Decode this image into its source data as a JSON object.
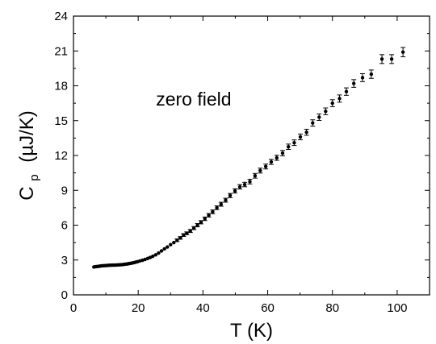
{
  "chart_data": {
    "type": "scatter",
    "title": "",
    "xlabel": "T (K)",
    "ylabel_main": "C",
    "ylabel_sub": "p",
    "ylabel_unit": "(µJ/K)",
    "annotation": "zero field",
    "xlim": [
      0,
      110
    ],
    "ylim": [
      0,
      24
    ],
    "x_ticks": [
      0,
      20,
      40,
      60,
      80,
      100
    ],
    "x_tick_labels": [
      "0",
      "20",
      "40",
      "60",
      "80",
      "100"
    ],
    "y_ticks": [
      0,
      3,
      6,
      9,
      12,
      15,
      18,
      21,
      24
    ],
    "y_tick_labels": [
      "0",
      "3",
      "6",
      "9",
      "12",
      "15",
      "18",
      "21",
      "24"
    ],
    "grid": false,
    "legend": "none",
    "marker_color": "#000000",
    "series": [
      {
        "x": [
          6.3,
          6.8,
          7.3,
          7.8,
          8.3,
          8.8,
          9.3,
          9.8,
          10.3,
          10.8,
          11.3,
          11.8,
          12.3,
          12.8,
          13.3,
          13.8,
          14.3,
          14.8,
          15.3,
          15.8,
          16.3,
          16.8,
          17.3,
          17.8,
          18.3,
          18.8,
          19.3,
          19.8,
          20.5,
          21.3,
          22.1,
          22.9,
          23.7,
          24.5,
          25.4,
          26.3,
          27.2,
          28.1,
          29.0,
          30.0,
          31.0,
          32.0,
          33.0,
          34.0,
          35.0,
          36.1,
          37.2,
          38.3,
          39.4,
          40.6,
          41.8,
          43.0,
          44.3,
          45.6,
          47.0,
          48.4,
          49.9,
          51.4,
          52.9,
          54.5,
          56.1,
          57.7,
          59.4,
          61.1,
          62.8,
          64.6,
          66.4,
          68.2,
          70.1,
          72.0,
          73.9,
          75.9,
          77.9,
          80.0,
          82.2,
          84.3,
          86.6,
          89.3,
          92.0,
          95.3,
          98.3,
          101.8
        ],
        "y": [
          2.4,
          2.42,
          2.44,
          2.46,
          2.48,
          2.5,
          2.51,
          2.52,
          2.53,
          2.54,
          2.55,
          2.55,
          2.56,
          2.56,
          2.57,
          2.58,
          2.59,
          2.6,
          2.61,
          2.63,
          2.65,
          2.67,
          2.7,
          2.72,
          2.75,
          2.78,
          2.82,
          2.86,
          2.92,
          2.98,
          3.05,
          3.13,
          3.22,
          3.32,
          3.45,
          3.6,
          3.78,
          3.96,
          4.12,
          4.32,
          4.5,
          4.7,
          4.9,
          5.15,
          5.3,
          5.5,
          5.75,
          6.0,
          6.25,
          6.55,
          6.85,
          7.15,
          7.5,
          7.8,
          8.15,
          8.55,
          8.95,
          9.3,
          9.5,
          9.75,
          10.25,
          10.7,
          11.05,
          11.45,
          11.8,
          12.2,
          12.75,
          13.1,
          13.6,
          14.0,
          14.8,
          15.3,
          15.8,
          16.5,
          16.9,
          17.5,
          18.2,
          18.7,
          19.0,
          20.3,
          20.3,
          20.9
        ],
        "err": [
          0.05,
          0.05,
          0.05,
          0.05,
          0.05,
          0.05,
          0.05,
          0.05,
          0.05,
          0.05,
          0.05,
          0.05,
          0.05,
          0.05,
          0.05,
          0.05,
          0.05,
          0.05,
          0.05,
          0.05,
          0.05,
          0.05,
          0.05,
          0.05,
          0.05,
          0.05,
          0.06,
          0.06,
          0.06,
          0.06,
          0.07,
          0.07,
          0.07,
          0.08,
          0.08,
          0.08,
          0.09,
          0.09,
          0.1,
          0.1,
          0.1,
          0.11,
          0.11,
          0.12,
          0.12,
          0.13,
          0.13,
          0.14,
          0.14,
          0.15,
          0.15,
          0.16,
          0.16,
          0.17,
          0.17,
          0.18,
          0.18,
          0.19,
          0.19,
          0.2,
          0.2,
          0.21,
          0.21,
          0.22,
          0.22,
          0.23,
          0.23,
          0.24,
          0.25,
          0.26,
          0.27,
          0.28,
          0.29,
          0.3,
          0.31,
          0.32,
          0.33,
          0.34,
          0.36,
          0.38,
          0.38,
          0.4
        ]
      }
    ]
  }
}
